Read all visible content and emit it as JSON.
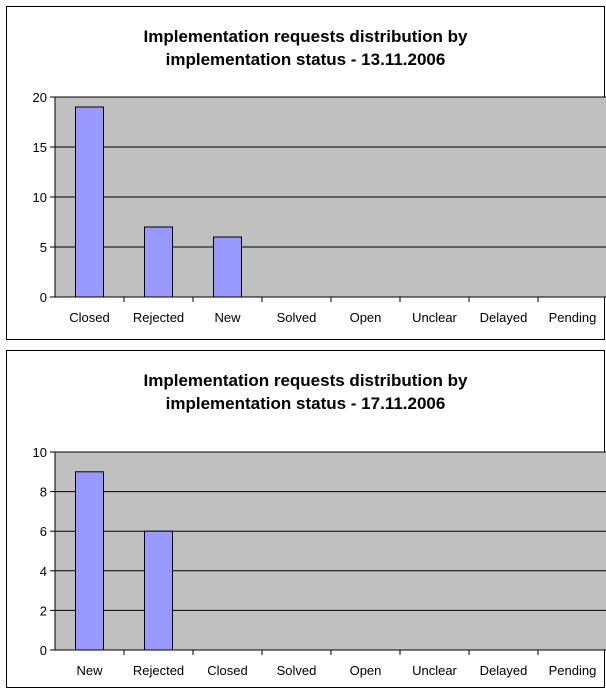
{
  "colors": {
    "plot_background": "#C0C0C0",
    "bar_fill": "#9999FF",
    "bar_stroke": "#000000",
    "gridline": "#000000"
  },
  "chart_data": [
    {
      "type": "bar",
      "title": "Implementation requests distribution by\nimplementation status - 13.11.2006",
      "xlabel": "",
      "ylabel": "",
      "categories": [
        "Closed",
        "Rejected",
        "New",
        "Solved",
        "Open",
        "Unclear",
        "Delayed",
        "Pending"
      ],
      "values": [
        19,
        7,
        6,
        0,
        0,
        0,
        0,
        0
      ],
      "ylim": [
        0,
        20
      ],
      "yticks": [
        0,
        5,
        10,
        15,
        20
      ],
      "ytick_labels": [
        "0",
        "5",
        "10",
        "15",
        "20"
      ],
      "grid": true,
      "legend": "none"
    },
    {
      "type": "bar",
      "title": "Implementation requests distribution by\nimplementation status - 17.11.2006",
      "xlabel": "",
      "ylabel": "",
      "categories": [
        "New",
        "Rejected",
        "Closed",
        "Solved",
        "Open",
        "Unclear",
        "Delayed",
        "Pending"
      ],
      "values": [
        9,
        6,
        0,
        0,
        0,
        0,
        0,
        0
      ],
      "ylim": [
        0,
        10
      ],
      "yticks": [
        0,
        2,
        4,
        6,
        8,
        10
      ],
      "ytick_labels": [
        "0",
        "2",
        "4",
        "6",
        "8",
        "10"
      ],
      "grid": true,
      "legend": "none"
    }
  ]
}
